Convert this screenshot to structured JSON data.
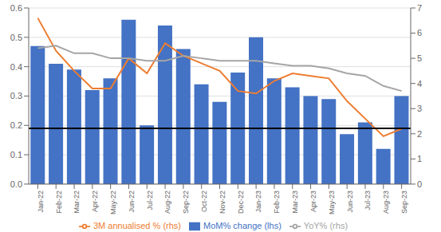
{
  "chart_data": {
    "type": "bar",
    "categories": [
      "Jan-22",
      "Feb-22",
      "Mar-22",
      "Apr-22",
      "May-22",
      "Jun-22",
      "Jul-22",
      "Aug-22",
      "Sep-22",
      "Oct-22",
      "Nov-22",
      "Dec-22",
      "Jan-23",
      "Feb-23",
      "Mar-23",
      "Apr-23",
      "May-23",
      "Jun-23",
      "Jul-23",
      "Aug-23",
      "Sep-23"
    ],
    "series": [
      {
        "name": "MoM% change (lhs)",
        "type": "bar",
        "color": "#4472C4",
        "values": [
          0.47,
          0.41,
          0.39,
          0.32,
          0.36,
          0.56,
          0.2,
          0.54,
          0.46,
          0.34,
          0.28,
          0.38,
          0.5,
          0.36,
          0.33,
          0.3,
          0.29,
          0.17,
          0.21,
          0.12,
          0.3
        ]
      },
      {
        "name": "3M annualised % (rhs)",
        "type": "line",
        "color": "#ED7D31",
        "axis": "y2",
        "values": [
          6.6,
          5.3,
          4.5,
          3.8,
          3.8,
          5.0,
          4.4,
          5.6,
          5.1,
          4.8,
          4.5,
          3.7,
          3.6,
          4.1,
          4.4,
          4.3,
          4.2,
          3.3,
          2.6,
          1.9,
          2.2
        ]
      },
      {
        "name": "YoY% (rhs)",
        "type": "line",
        "color": "#A5A5A5",
        "axis": "y2",
        "values": [
          5.4,
          5.5,
          5.2,
          5.2,
          5.0,
          5.0,
          4.9,
          4.9,
          5.1,
          5.0,
          4.9,
          4.9,
          4.9,
          4.8,
          4.7,
          4.7,
          4.6,
          4.4,
          4.3,
          3.9,
          3.7
        ]
      }
    ],
    "hline": {
      "value": 0.19,
      "color": "#000000"
    },
    "ylim": [
      0,
      0.6
    ],
    "yticks": [
      {
        "value": 0,
        "label": "0.0"
      },
      0.1,
      0.2,
      0.3,
      0.4,
      0.5,
      0.6
    ],
    "y2lim": [
      0,
      7
    ],
    "y2ticks": [
      0,
      1,
      2,
      3,
      4,
      5,
      6,
      7
    ],
    "grid": true,
    "legend": "bottom"
  }
}
